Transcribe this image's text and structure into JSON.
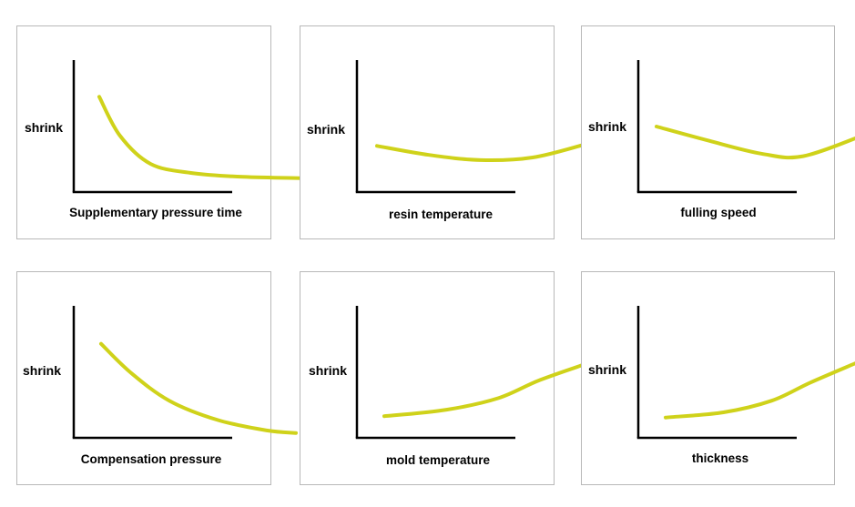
{
  "colors": {
    "curve": "#cfd21a",
    "axis": "#000000",
    "panel_border": "#b8b8b8"
  },
  "chart_data": [
    {
      "type": "line",
      "ylabel": "shrink",
      "xlabel": "Supplementary pressure time",
      "trend": "decreasing, then leveling off",
      "x": [
        0,
        0.1,
        0.25,
        0.45,
        0.7,
        1.0
      ],
      "y": [
        0.85,
        0.55,
        0.33,
        0.26,
        0.23,
        0.22
      ],
      "xlim": [
        0,
        1
      ],
      "ylim": [
        0,
        1
      ],
      "grid": false
    },
    {
      "type": "line",
      "ylabel": "shrink",
      "xlabel": "resin temperature",
      "trend": "slight decrease, then slight increase",
      "x": [
        0,
        0.25,
        0.5,
        0.75,
        1.0
      ],
      "y": [
        0.47,
        0.4,
        0.36,
        0.38,
        0.48
      ],
      "xlim": [
        0,
        1
      ],
      "ylim": [
        0,
        1
      ],
      "grid": false
    },
    {
      "type": "line",
      "ylabel": "shrink",
      "xlabel": "fulling speed",
      "trend": "decreasing, then increasing",
      "x": [
        0,
        0.25,
        0.5,
        0.7,
        1.0
      ],
      "y": [
        0.62,
        0.51,
        0.41,
        0.39,
        0.56
      ],
      "xlim": [
        0,
        1
      ],
      "ylim": [
        0,
        1
      ],
      "grid": false
    },
    {
      "type": "line",
      "ylabel": "shrink",
      "xlabel": "Compensation pressure",
      "trend": "decreasing",
      "x": [
        0,
        0.15,
        0.35,
        0.6,
        0.85,
        1.0
      ],
      "y": [
        0.84,
        0.62,
        0.4,
        0.25,
        0.17,
        0.15
      ],
      "xlim": [
        0,
        1
      ],
      "ylim": [
        0,
        1
      ],
      "grid": false
    },
    {
      "type": "line",
      "ylabel": "shrink",
      "xlabel": "mold temperature",
      "trend": "increasing, accelerating",
      "x": [
        0,
        0.3,
        0.55,
        0.75,
        1.0
      ],
      "y": [
        0.28,
        0.33,
        0.42,
        0.56,
        0.7
      ],
      "xlim": [
        0,
        1
      ],
      "ylim": [
        0,
        1
      ],
      "grid": false
    },
    {
      "type": "line",
      "ylabel": "shrink",
      "xlabel": "thickness",
      "trend": "increasing, accelerating",
      "x": [
        0,
        0.3,
        0.55,
        0.75,
        1.0
      ],
      "y": [
        0.27,
        0.31,
        0.4,
        0.54,
        0.7
      ],
      "xlim": [
        0,
        1
      ],
      "ylim": [
        0,
        1
      ],
      "grid": false
    }
  ]
}
